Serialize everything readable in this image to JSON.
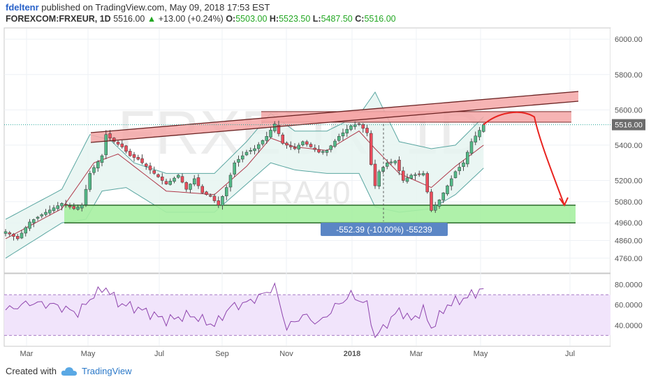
{
  "header": {
    "author": "fdeltenr",
    "published_text": " published on TradingView.com, May 09, 2018 17:53 EST",
    "symbol": "FOREXCOM:FRXEUR, 1D",
    "last": "5516.00",
    "change_arrow": "▲",
    "change": "+13.00 (+0.24%)",
    "o_label": "O:",
    "o_value": "5503.00",
    "h_label": "H:",
    "h_value": "5523.50",
    "l_label": "L:",
    "l_value": "5487.50",
    "c_label": "C:",
    "c_value": "5516.00"
  },
  "watermark": {
    "symbol": "FRXEUR, 1D",
    "name": "FRA40"
  },
  "footer": {
    "created_with": "Created with",
    "brand": "TradingView"
  },
  "colors": {
    "up": "#53b987",
    "down": "#eb4d5c",
    "ma": "#b0394a",
    "band": "#5aa6a1",
    "band_fill": "#e6f4f1",
    "resistance_fill": "#f4a7a7",
    "support_fill": "#a6f0a1",
    "projection": "#e8231f",
    "rsi": "#8e44ad",
    "rsi_fill": "#f1e4fb",
    "measure": "#5b86c5",
    "price_tag": "#6c6c6c"
  },
  "chart_data": [
    {
      "type": "candlestick",
      "name": "FRXEUR daily",
      "x_ticks": [
        "Mar",
        "May",
        "Jul",
        "Sep",
        "Nov",
        "2018",
        "Mar",
        "May",
        "Jul"
      ],
      "y_ticks": [
        "6000.00",
        "5800.00",
        "5600.00",
        "5400.00",
        "5200.00",
        "5080.00",
        "4960.00",
        "4860.00",
        "4760.00"
      ],
      "ylim": [
        4680,
        6060
      ],
      "last_price_label": "5516.00",
      "last_price": 5516,
      "anchors": [
        [
          0,
          4910
        ],
        [
          3,
          4870
        ],
        [
          6,
          4965
        ],
        [
          10,
          5020
        ],
        [
          14,
          5070
        ],
        [
          17,
          5040
        ],
        [
          19,
          5060
        ],
        [
          21,
          5240
        ],
        [
          24,
          5340
        ],
        [
          25,
          5460
        ],
        [
          27,
          5420
        ],
        [
          29,
          5390
        ],
        [
          31,
          5340
        ],
        [
          33,
          5320
        ],
        [
          37,
          5240
        ],
        [
          40,
          5180
        ],
        [
          43,
          5230
        ],
        [
          45,
          5150
        ],
        [
          47,
          5210
        ],
        [
          49,
          5130
        ],
        [
          51,
          5110
        ],
        [
          53,
          5060
        ],
        [
          55,
          5160
        ],
        [
          57,
          5300
        ],
        [
          60,
          5360
        ],
        [
          62,
          5380
        ],
        [
          65,
          5450
        ],
        [
          67,
          5520
        ],
        [
          69,
          5410
        ],
        [
          72,
          5380
        ],
        [
          74,
          5420
        ],
        [
          76,
          5390
        ],
        [
          78,
          5360
        ],
        [
          80,
          5370
        ],
        [
          83,
          5450
        ],
        [
          86,
          5510
        ],
        [
          88,
          5520
        ],
        [
          90,
          5470
        ],
        [
          91,
          5290
        ],
        [
          92,
          5170
        ],
        [
          93,
          5250
        ],
        [
          95,
          5300
        ],
        [
          97,
          5310
        ],
        [
          99,
          5200
        ],
        [
          101,
          5230
        ],
        [
          104,
          5240
        ],
        [
          106,
          5030
        ],
        [
          108,
          5090
        ],
        [
          110,
          5170
        ],
        [
          112,
          5250
        ],
        [
          114,
          5300
        ],
        [
          116,
          5420
        ],
        [
          119,
          5516
        ]
      ],
      "bollinger_upper": [
        [
          0,
          4980
        ],
        [
          14,
          5150
        ],
        [
          21,
          5460
        ],
        [
          26,
          5430
        ],
        [
          32,
          5300
        ],
        [
          40,
          5240
        ],
        [
          52,
          5240
        ],
        [
          60,
          5420
        ],
        [
          66,
          5580
        ],
        [
          72,
          5480
        ],
        [
          80,
          5480
        ],
        [
          88,
          5570
        ],
        [
          92,
          5700
        ],
        [
          98,
          5420
        ],
        [
          106,
          5380
        ],
        [
          112,
          5400
        ],
        [
          119,
          5560
        ]
      ],
      "bollinger_lower": [
        [
          0,
          4760
        ],
        [
          14,
          4960
        ],
        [
          20,
          4980
        ],
        [
          24,
          5140
        ],
        [
          30,
          5160
        ],
        [
          40,
          5020
        ],
        [
          52,
          5020
        ],
        [
          60,
          5180
        ],
        [
          66,
          5300
        ],
        [
          72,
          5260
        ],
        [
          80,
          5240
        ],
        [
          88,
          5240
        ],
        [
          92,
          5050
        ],
        [
          98,
          5020
        ],
        [
          106,
          5040
        ],
        [
          112,
          5120
        ],
        [
          119,
          5270
        ]
      ],
      "moving_average": [
        [
          0,
          4870
        ],
        [
          14,
          5040
        ],
        [
          22,
          5300
        ],
        [
          28,
          5350
        ],
        [
          40,
          5140
        ],
        [
          52,
          5120
        ],
        [
          60,
          5280
        ],
        [
          66,
          5440
        ],
        [
          72,
          5390
        ],
        [
          80,
          5370
        ],
        [
          88,
          5480
        ],
        [
          92,
          5380
        ],
        [
          98,
          5240
        ],
        [
          106,
          5160
        ],
        [
          112,
          5280
        ],
        [
          119,
          5400
        ]
      ],
      "annotations": {
        "resistance_channel": [
          [
            25,
            5460
          ],
          [
            88,
            5610
          ]
        ],
        "resistance_channel_end": [
          [
            88,
            5610
          ],
          [
            139,
            5690
          ]
        ],
        "resistance_zone": [
          5530,
          5590
        ],
        "support_zone": [
          4960,
          5060
        ],
        "projection": [
          [
            119,
            5516
          ],
          [
            127,
            5590
          ],
          [
            131,
            5580
          ],
          [
            136,
            5330
          ],
          [
            141,
            5050
          ]
        ],
        "measure_label": "-552.39 (-10.00%) -55239",
        "measure_from": 5520,
        "measure_to": 4968
      }
    },
    {
      "type": "line",
      "name": "RSI",
      "y_ticks": [
        "80.0000",
        "60.0000",
        "40.0000"
      ],
      "ylim": [
        20,
        90
      ],
      "upper_band": 70,
      "lower_band": 30,
      "anchors": [
        [
          0,
          55
        ],
        [
          6,
          62
        ],
        [
          12,
          60
        ],
        [
          18,
          52
        ],
        [
          22,
          70
        ],
        [
          25,
          77
        ],
        [
          28,
          62
        ],
        [
          34,
          55
        ],
        [
          40,
          45
        ],
        [
          46,
          50
        ],
        [
          52,
          40
        ],
        [
          56,
          58
        ],
        [
          60,
          62
        ],
        [
          64,
          70
        ],
        [
          67,
          78
        ],
        [
          70,
          37
        ],
        [
          74,
          50
        ],
        [
          78,
          42
        ],
        [
          82,
          58
        ],
        [
          86,
          70
        ],
        [
          90,
          60
        ],
        [
          92,
          28
        ],
        [
          95,
          42
        ],
        [
          98,
          55
        ],
        [
          101,
          45
        ],
        [
          104,
          55
        ],
        [
          106,
          37
        ],
        [
          110,
          60
        ],
        [
          114,
          66
        ],
        [
          119,
          76
        ]
      ]
    }
  ]
}
